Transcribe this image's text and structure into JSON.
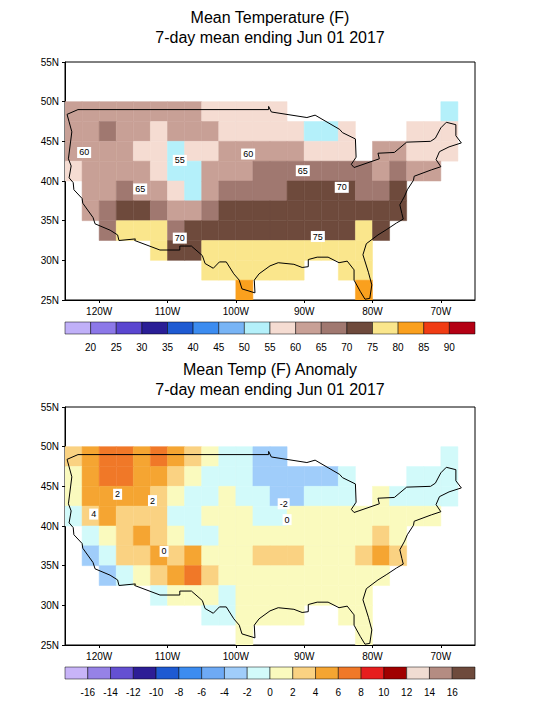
{
  "chart_data": [
    {
      "type": "map",
      "title": "Mean Temperature (F)",
      "subtitle": "7-day mean ending Jun 01 2017",
      "xlim": [
        -125,
        -65
      ],
      "xticks": [
        {
          "value": -120,
          "label": "120W"
        },
        {
          "value": -110,
          "label": "110W"
        },
        {
          "value": -100,
          "label": "100W"
        },
        {
          "value": -90,
          "label": "90W"
        },
        {
          "value": -80,
          "label": "80W"
        },
        {
          "value": -70,
          "label": "70W"
        }
      ],
      "ylim": [
        25,
        55
      ],
      "yticks": [
        {
          "value": 25,
          "label": "25N"
        },
        {
          "value": 30,
          "label": "30N"
        },
        {
          "value": 35,
          "label": "35N"
        },
        {
          "value": 40,
          "label": "40N"
        },
        {
          "value": 45,
          "label": "45N"
        },
        {
          "value": 50,
          "label": "50N"
        },
        {
          "value": 55,
          "label": "55N"
        }
      ],
      "lon_centers": [
        -123.75,
        -121.25,
        -118.75,
        -116.25,
        -113.75,
        -111.25,
        -108.75,
        -106.25,
        -103.75,
        -101.25,
        -98.75,
        -96.25,
        -93.75,
        -91.25,
        -88.75,
        -86.25,
        -83.75,
        -81.25,
        -78.75,
        -76.25,
        -73.75,
        -71.25,
        -68.75,
        -66.25
      ],
      "lat_centers": [
        48.75,
        46.25,
        43.75,
        41.25,
        38.75,
        36.25,
        33.75,
        31.25,
        28.75,
        26.25
      ],
      "cells": [
        [
          61,
          62,
          63,
          61,
          60,
          61,
          62,
          61,
          59,
          58,
          58,
          57,
          57,
          null,
          null,
          null,
          null,
          null,
          null,
          null,
          null,
          null,
          54,
          null
        ],
        [
          60,
          63,
          66,
          62,
          60,
          58,
          60,
          61,
          60,
          59,
          59,
          58,
          57,
          55,
          54,
          54,
          55,
          null,
          null,
          null,
          57,
          56,
          55,
          null
        ],
        [
          60,
          63,
          64,
          62,
          58,
          55,
          54,
          55,
          58,
          60,
          60,
          61,
          61,
          60,
          58,
          58,
          59,
          null,
          60,
          60,
          58,
          59,
          56,
          null
        ],
        [
          58,
          63,
          64,
          64,
          63,
          58,
          53,
          53,
          60,
          63,
          64,
          65,
          65,
          65,
          66,
          66,
          66,
          65,
          64,
          65,
          63,
          62,
          null,
          null
        ],
        [
          null,
          62,
          62,
          65,
          63,
          60,
          55,
          53,
          60,
          65,
          67,
          68,
          69,
          70,
          70,
          70,
          70,
          68,
          69,
          70,
          null,
          null,
          null,
          null
        ],
        [
          null,
          62,
          67,
          72,
          70,
          66,
          63,
          62,
          66,
          70,
          71,
          72,
          72,
          73,
          73,
          72,
          70,
          70,
          73,
          73,
          null,
          null,
          null,
          null
        ],
        [
          null,
          null,
          66,
          77,
          78,
          75,
          69,
          71,
          73,
          73,
          74,
          74,
          74,
          74,
          74,
          73,
          74,
          76,
          74,
          null,
          null,
          null,
          null,
          null
        ],
        [
          null,
          null,
          null,
          null,
          null,
          77,
          74,
          74,
          76,
          77,
          77,
          77,
          76,
          76,
          76,
          77,
          77,
          78,
          null,
          null,
          null,
          null,
          null,
          null
        ],
        [
          null,
          null,
          null,
          null,
          null,
          null,
          null,
          null,
          79,
          79,
          79,
          79,
          78,
          78,
          null,
          null,
          79,
          79,
          null,
          null,
          null,
          null,
          null,
          null
        ],
        [
          null,
          null,
          null,
          null,
          null,
          null,
          null,
          null,
          null,
          null,
          82,
          null,
          null,
          null,
          null,
          null,
          null,
          81,
          null,
          null,
          null,
          null,
          null,
          null
        ]
      ],
      "colorbar": {
        "ticks": [
          20,
          25,
          30,
          35,
          40,
          45,
          50,
          55,
          60,
          65,
          70,
          75,
          80,
          85,
          90
        ],
        "colors": [
          "#c0b0f8",
          "#8c78e8",
          "#5a46d0",
          "#2a1e96",
          "#1e5ad2",
          "#3c8cf0",
          "#78b4f5",
          "#b4f0fa",
          "#f5dcd2",
          "#c8a096",
          "#a07870",
          "#6e4a3c",
          "#fae68c",
          "#faa01e",
          "#f03c14",
          "#b40014"
        ]
      },
      "contour_labels": [
        {
          "value": 60,
          "lon": -122.2,
          "lat": 43.6
        },
        {
          "value": 55,
          "lon": -108.2,
          "lat": 42.6
        },
        {
          "value": 60,
          "lon": -98.2,
          "lat": 43.4
        },
        {
          "value": 65,
          "lon": -114,
          "lat": 39
        },
        {
          "value": 65,
          "lon": -90.2,
          "lat": 41.3
        },
        {
          "value": 70,
          "lon": -84.5,
          "lat": 39.2
        },
        {
          "value": 70,
          "lon": -108.2,
          "lat": 32.8
        },
        {
          "value": 75,
          "lon": -88,
          "lat": 33
        }
      ]
    },
    {
      "type": "map",
      "title": "Mean Temp (F) Anomaly",
      "subtitle": "7-day mean ending Jun 01 2017",
      "xlim": [
        -125,
        -65
      ],
      "xticks": [
        {
          "value": -120,
          "label": "120W"
        },
        {
          "value": -110,
          "label": "110W"
        },
        {
          "value": -100,
          "label": "100W"
        },
        {
          "value": -90,
          "label": "90W"
        },
        {
          "value": -80,
          "label": "80W"
        },
        {
          "value": -70,
          "label": "70W"
        }
      ],
      "ylim": [
        25,
        55
      ],
      "yticks": [
        {
          "value": 25,
          "label": "25N"
        },
        {
          "value": 30,
          "label": "30N"
        },
        {
          "value": 35,
          "label": "35N"
        },
        {
          "value": 40,
          "label": "40N"
        },
        {
          "value": 45,
          "label": "45N"
        },
        {
          "value": 50,
          "label": "50N"
        },
        {
          "value": 55,
          "label": "55N"
        }
      ],
      "lon_centers": [
        -123.75,
        -121.25,
        -118.75,
        -116.25,
        -113.75,
        -111.25,
        -108.75,
        -106.25,
        -103.75,
        -101.25,
        -98.75,
        -96.25,
        -93.75,
        -91.25,
        -88.75,
        -86.25,
        -83.75,
        -81.25,
        -78.75,
        -76.25,
        -73.75,
        -71.25,
        -68.75,
        -66.25
      ],
      "lat_centers": [
        48.75,
        46.25,
        43.75,
        41.25,
        38.75,
        36.25,
        33.75,
        31.25,
        28.75,
        26.25
      ],
      "cells": [
        [
          2,
          5,
          6,
          6,
          5,
          6,
          4,
          2,
          0,
          -1,
          -2,
          -3,
          -3,
          null,
          null,
          null,
          null,
          null,
          null,
          null,
          null,
          null,
          -1,
          null
        ],
        [
          1,
          5,
          7,
          6,
          5,
          5,
          3,
          1,
          -1,
          -1,
          -2,
          -3,
          -4,
          -3,
          -3,
          -3,
          -2,
          null,
          null,
          null,
          -1,
          -1,
          -1,
          null
        ],
        [
          0,
          4,
          5,
          5,
          4,
          3,
          0,
          -1,
          -1,
          0,
          -1,
          -2,
          -3,
          -3,
          -2,
          -2,
          -1,
          null,
          0,
          -1,
          -1,
          -1,
          -1,
          null
        ],
        [
          -1,
          3,
          4,
          3,
          2,
          2,
          -1,
          -1,
          0,
          1,
          0,
          -1,
          -1,
          0,
          1,
          1,
          1,
          1,
          1,
          0,
          0,
          1,
          null,
          null
        ],
        [
          null,
          -2,
          1,
          3,
          4,
          3,
          0,
          -1,
          -1,
          0,
          0,
          1,
          1,
          1,
          1,
          1,
          1,
          1,
          2,
          1,
          null,
          null,
          null,
          null
        ],
        [
          null,
          -3,
          -2,
          2,
          3,
          4,
          2,
          5,
          1,
          0,
          0,
          2,
          3,
          2,
          1,
          1,
          1,
          2,
          4,
          3,
          null,
          null,
          null,
          null
        ],
        [
          null,
          null,
          -3,
          -2,
          1,
          3,
          5,
          7,
          2,
          0,
          0,
          1,
          1,
          1,
          1,
          1,
          1,
          1,
          1,
          null,
          null,
          null,
          null,
          null
        ],
        [
          null,
          null,
          null,
          null,
          null,
          -2,
          0,
          1,
          0,
          -1,
          0,
          1,
          1,
          1,
          1,
          1,
          1,
          1,
          null,
          null,
          null,
          null,
          null,
          null
        ],
        [
          null,
          null,
          null,
          null,
          null,
          null,
          null,
          null,
          -1,
          -1,
          0,
          1,
          1,
          1,
          null,
          null,
          1,
          1,
          null,
          null,
          null,
          null,
          null,
          null
        ],
        [
          null,
          null,
          null,
          null,
          null,
          null,
          null,
          null,
          null,
          null,
          1,
          null,
          null,
          null,
          null,
          null,
          null,
          1,
          null,
          null,
          null,
          null,
          null,
          null
        ]
      ],
      "colorbar": {
        "ticks": [
          -16,
          -14,
          -12,
          -10,
          -8,
          -6,
          -4,
          -2,
          0,
          2,
          4,
          6,
          8,
          10,
          12,
          14,
          16
        ],
        "colors": [
          "#c8b4f8",
          "#9682e6",
          "#6450d2",
          "#2d1e96",
          "#1e5ad2",
          "#3c8cf0",
          "#6eaaf5",
          "#a0cdfa",
          "#d2fafa",
          "#fafabe",
          "#fad282",
          "#f5a532",
          "#f07828",
          "#e61e1e",
          "#a00000",
          "#f0dcd2",
          "#b48c82",
          "#6e4a3c"
        ]
      },
      "contour_labels": [
        {
          "value": 4,
          "lon": -120.8,
          "lat": 41.5
        },
        {
          "value": 2,
          "lon": -117.3,
          "lat": 44
        },
        {
          "value": 2,
          "lon": -112.2,
          "lat": 43.2
        },
        {
          "value": 0,
          "lon": -110.5,
          "lat": 36.8
        },
        {
          "value": 0,
          "lon": -92.5,
          "lat": 40.8
        },
        {
          "value": -2,
          "lon": -93,
          "lat": 42.8
        }
      ]
    }
  ]
}
